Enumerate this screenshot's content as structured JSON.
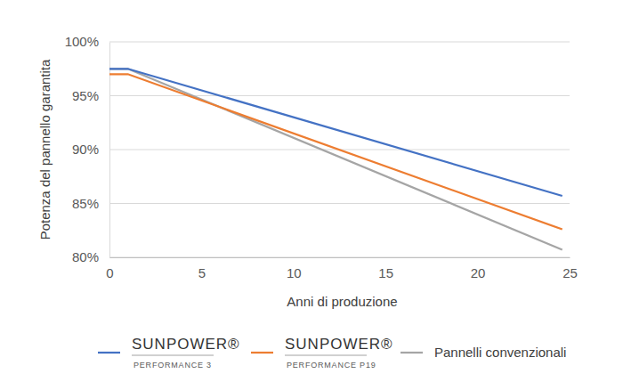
{
  "chart_data": {
    "type": "line",
    "x_label": "Anni di produzione",
    "y_label": "Potenza del pannello garantita",
    "x": [
      0,
      1,
      24.6
    ],
    "series": [
      {
        "name": "SUNPOWER® PERFORMANCE 3",
        "color": "#4472c4",
        "values": [
          97.5,
          97.5,
          85.7
        ]
      },
      {
        "name": "SUNPOWER® PERFORMANCE P19",
        "color": "#ed7d31",
        "values": [
          97,
          97,
          82.6
        ]
      },
      {
        "name": "Pannelli convenzionali",
        "color": "#a5a5a5",
        "values": [
          97.5,
          97.5,
          80.7
        ]
      }
    ],
    "xlim": [
      0,
      25
    ],
    "xticks": [
      0,
      5,
      10,
      15,
      20,
      25
    ],
    "ylim": [
      80,
      100
    ],
    "yticks": [
      {
        "value": 80,
        "label": "80%"
      },
      {
        "value": 85,
        "label": "85%"
      },
      {
        "value": 90,
        "label": "90%"
      },
      {
        "value": 95,
        "label": "95%"
      },
      {
        "value": 100,
        "label": "100%"
      }
    ],
    "grid": true,
    "legend": "bottom"
  }
}
